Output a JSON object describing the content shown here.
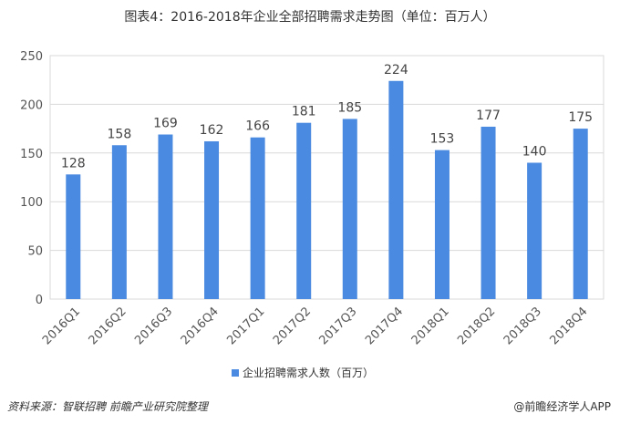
{
  "chart_data": {
    "type": "bar",
    "title": "图表4：2016-2018年企业全部招聘需求走势图（单位：百万人）",
    "categories": [
      "2016Q1",
      "2016Q2",
      "2016Q3",
      "2016Q4",
      "2017Q1",
      "2017Q2",
      "2017Q3",
      "2017Q4",
      "2018Q1",
      "2018Q2",
      "2018Q3",
      "2018Q4"
    ],
    "series": [
      {
        "name": "企业招聘需求人数（百万）",
        "values": [
          128,
          158,
          169,
          162,
          166,
          181,
          185,
          224,
          153,
          177,
          140,
          175
        ],
        "color": "#4a8ae0"
      }
    ],
    "y_ticks": [
      "0",
      "50",
      "100",
      "150",
      "200",
      "250"
    ],
    "ylim": [
      0,
      250
    ],
    "grid": true,
    "legend_position": "bottom"
  },
  "footer": {
    "source": "资料来源：智联招聘 前瞻产业研究院整理",
    "brand": "@前瞻经济学人APP"
  }
}
